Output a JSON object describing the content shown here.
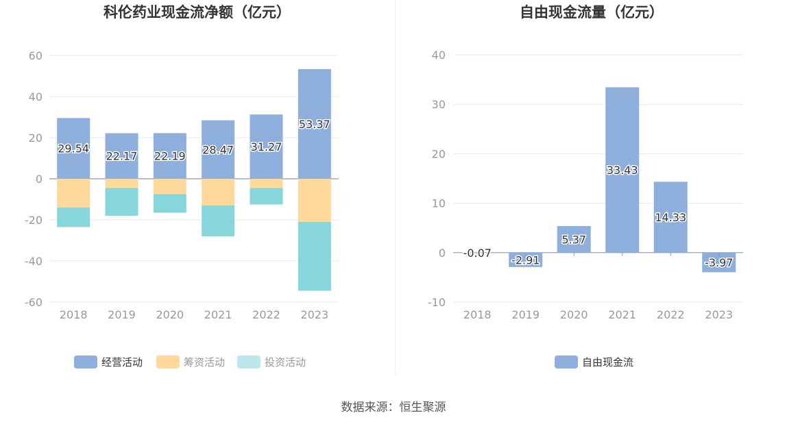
{
  "source": "数据来源：恒生聚源",
  "colors": {
    "operating": "#8eaedb",
    "financing": "#ffd99b",
    "investing": "#86d6db",
    "investing_legend": "#bde8eb",
    "fcf": "#8eaedb",
    "grid": "#e6e9f0",
    "axis_text": "#999999",
    "zero_line": "#8c94a6"
  },
  "chart_data": [
    {
      "type": "bar",
      "stacked": true,
      "title": "科伦药业现金流净额（亿元）",
      "categories": [
        "2018",
        "2019",
        "2020",
        "2021",
        "2022",
        "2023"
      ],
      "ylim": [
        -60,
        60
      ],
      "yticks": [
        60,
        40,
        20,
        0,
        -20,
        -40,
        -60
      ],
      "ytick_labels": [
        "60",
        "40",
        "20",
        "0",
        "-20",
        "-40",
        "-60"
      ],
      "series": [
        {
          "name": "经营活动",
          "values": [
            29.54,
            22.17,
            22.19,
            28.47,
            31.27,
            53.37
          ],
          "labels": [
            "29.54",
            "22.17",
            "22.19",
            "28.47",
            "31.27",
            "53.37"
          ]
        },
        {
          "name": "筹资活动",
          "values": [
            -14.0,
            -4.5,
            -7.5,
            -13.0,
            -4.5,
            -21.0
          ]
        },
        {
          "name": "投资活动",
          "values": [
            -9.5,
            -13.5,
            -9.0,
            -15.0,
            -8.0,
            -33.5
          ]
        }
      ],
      "legend": [
        "经营活动",
        "筹资活动",
        "投资活动"
      ]
    },
    {
      "type": "bar",
      "title": "自由现金流量（亿元）",
      "categories": [
        "2018",
        "2019",
        "2020",
        "2021",
        "2022",
        "2023"
      ],
      "ylim": [
        -10,
        40
      ],
      "yticks": [
        40,
        30,
        20,
        10,
        0,
        -10
      ],
      "ytick_labels": [
        "40",
        "30",
        "20",
        "10",
        "0",
        "-10"
      ],
      "series": [
        {
          "name": "自由现金流",
          "values": [
            -0.07,
            -2.91,
            5.37,
            33.43,
            14.33,
            -3.97
          ],
          "labels": [
            "-0.07",
            "-2.91",
            "5.37",
            "33.43",
            "14.33",
            "-3.97"
          ]
        }
      ],
      "legend": [
        "自由现金流"
      ]
    }
  ]
}
